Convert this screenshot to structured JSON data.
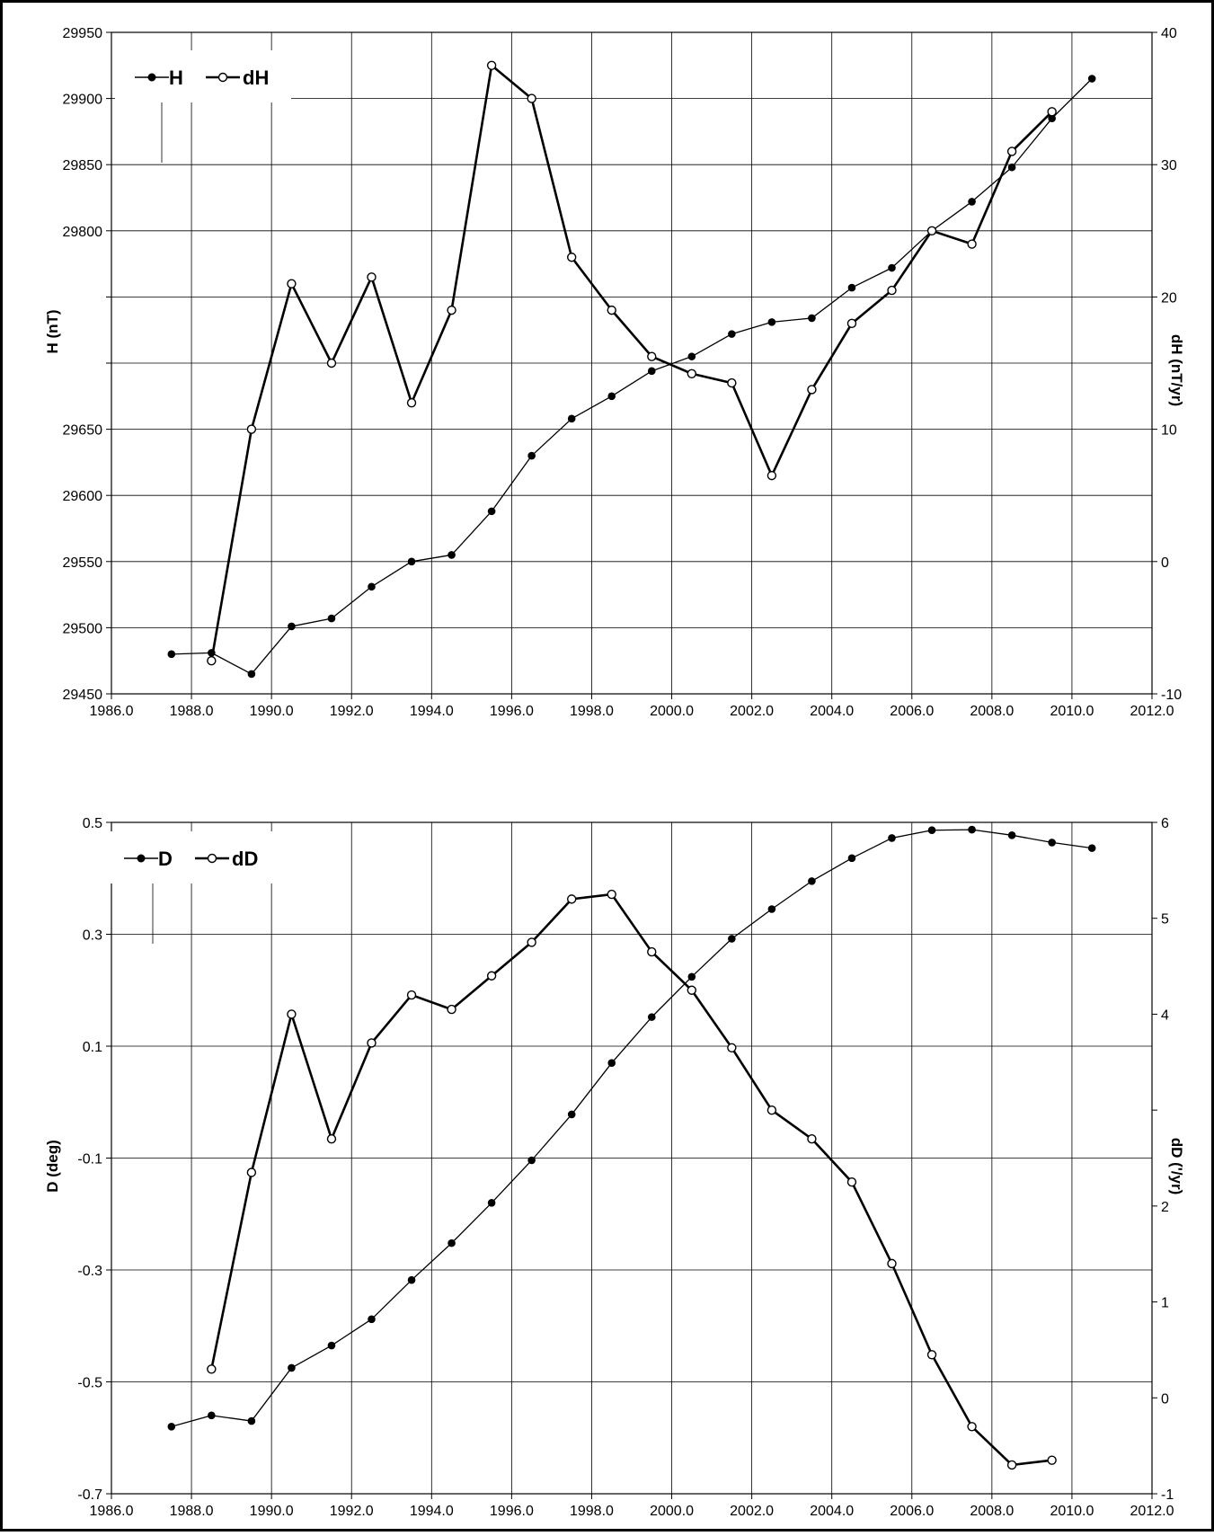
{
  "chart_data": [
    {
      "type": "line",
      "title": "",
      "xlabel": "",
      "ylabel": "H (nT)",
      "y2label": "dH (nT/yr)",
      "xlim": [
        1986,
        2012
      ],
      "ylim": [
        29450,
        29950
      ],
      "y2lim": [
        -10,
        40
      ],
      "x_ticks": [
        "1986.0",
        "1988.0",
        "1990.0",
        "1992.0",
        "1994.0",
        "1996.0",
        "1998.0",
        "2000.0",
        "2002.0",
        "2004.0",
        "2006.0",
        "2008.0",
        "2010.0",
        "2012.0"
      ],
      "y_ticks": [
        "29450",
        "29500",
        "29550",
        "29600",
        "29650",
        "",
        "",
        "29800",
        "29850",
        "29900",
        "29950"
      ],
      "y2_ticks": [
        "-10",
        "0",
        "10",
        "20",
        "30",
        "40"
      ],
      "grid": true,
      "legend_position": "top-left",
      "series": [
        {
          "name": "H",
          "axis": "left",
          "marker": "filled",
          "x": [
            1987.5,
            1988.5,
            1989.5,
            1990.5,
            1991.5,
            1992.5,
            1993.5,
            1994.5,
            1995.5,
            1996.5,
            1997.5,
            1998.5,
            1999.5,
            2000.5,
            2001.5,
            2002.5,
            2003.5,
            2004.5,
            2005.5,
            2006.5,
            2007.5,
            2008.5,
            2009.5,
            2010.5
          ],
          "values": [
            29480,
            29481,
            29465,
            29501,
            29507,
            29531,
            29550,
            29555,
            29588,
            29630,
            29658,
            29675,
            29694,
            29705,
            29722,
            29731,
            29734,
            29757,
            29772,
            29800,
            29822,
            29848,
            29885,
            29915
          ]
        },
        {
          "name": "dH",
          "axis": "right",
          "marker": "open",
          "x": [
            1988.5,
            1989.5,
            1990.5,
            1991.5,
            1992.5,
            1993.5,
            1994.5,
            1995.5,
            1996.5,
            1997.5,
            1998.5,
            1999.5,
            2000.5,
            2001.5,
            2002.5,
            2003.5,
            2004.5,
            2005.5,
            2006.5,
            2007.5,
            2008.5,
            2009.5
          ],
          "values": [
            -7.5,
            10,
            21,
            15,
            21.5,
            12,
            19,
            37.5,
            35,
            23,
            19,
            15.5,
            14.2,
            13.5,
            6.5,
            13,
            18,
            20.5,
            25,
            24,
            31,
            34
          ]
        }
      ]
    },
    {
      "type": "line",
      "title": "",
      "xlabel": "",
      "ylabel": "D (deg)",
      "y2label": "dD ('/yr)",
      "xlim": [
        1986,
        2012
      ],
      "ylim": [
        -0.7,
        0.5
      ],
      "y2lim": [
        -1,
        6
      ],
      "x_ticks": [
        "1986.0",
        "1988.0",
        "1990.0",
        "1992.0",
        "1994.0",
        "1996.0",
        "1998.0",
        "2000.0",
        "2002.0",
        "2004.0",
        "2006.0",
        "2008.0",
        "2010.0",
        "2012.0"
      ],
      "y_ticks": [
        "-0.7",
        "-0.5",
        "-0.3",
        "-0.1",
        "0.1",
        "0.3",
        "0.5"
      ],
      "y2_ticks": [
        "-1",
        "0",
        "1",
        "2",
        "",
        "4",
        "5",
        "6"
      ],
      "grid": true,
      "legend_position": "top-left",
      "series": [
        {
          "name": "D",
          "axis": "left",
          "marker": "filled",
          "x": [
            1987.5,
            1988.5,
            1989.5,
            1990.5,
            1991.5,
            1992.5,
            1993.5,
            1994.5,
            1995.5,
            1996.5,
            1997.5,
            1998.5,
            1999.5,
            2000.5,
            2001.5,
            2002.5,
            2003.5,
            2004.5,
            2005.5,
            2006.5,
            2007.5,
            2008.5,
            2009.5,
            2010.5
          ],
          "values": [
            -0.58,
            -0.56,
            -0.57,
            -0.475,
            -0.435,
            -0.388,
            -0.318,
            -0.252,
            -0.18,
            -0.104,
            -0.022,
            0.07,
            0.152,
            0.224,
            0.292,
            0.345,
            0.395,
            0.436,
            0.472,
            0.486,
            0.487,
            0.477,
            0.464,
            0.454
          ]
        },
        {
          "name": "dD",
          "axis": "right",
          "marker": "open",
          "x": [
            1988.5,
            1989.5,
            1990.5,
            1991.5,
            1992.5,
            1993.5,
            1994.5,
            1995.5,
            1996.5,
            1997.5,
            1998.5,
            1999.5,
            2000.5,
            2001.5,
            2002.5,
            2003.5,
            2004.5,
            2005.5,
            2006.5,
            2007.5,
            2008.5,
            2009.5
          ],
          "values": [
            0.3,
            2.35,
            4,
            2.7,
            3.7,
            4.2,
            4.05,
            4.4,
            4.75,
            5.2,
            5.25,
            4.65,
            4.25,
            3.65,
            3.0,
            2.7,
            2.25,
            1.4,
            0.45,
            -0.3,
            -0.7,
            -0.65
          ]
        }
      ]
    }
  ]
}
